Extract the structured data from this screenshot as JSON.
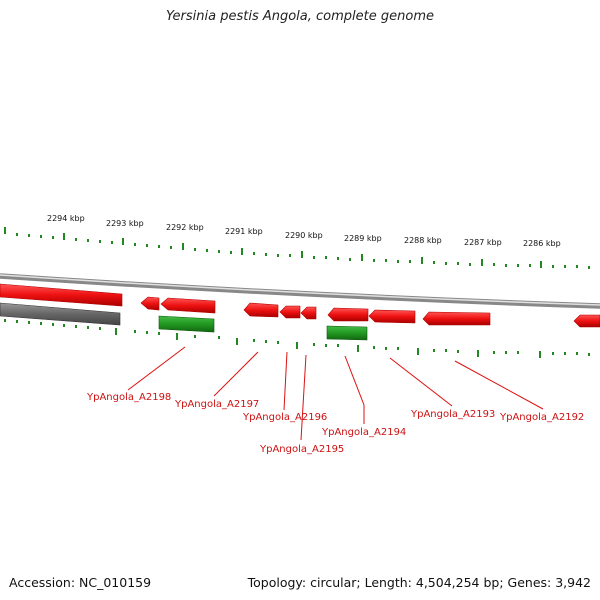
{
  "title": "Yersinia pestis Angola, complete genome",
  "footer": {
    "accession": "Accession: NC_010159",
    "summary": "Topology: circular; Length: 4,504,254 bp; Genes: 3,942"
  },
  "colors": {
    "forward_gene": "#ee1111",
    "reverse_gene": "#229922",
    "tick": "#228822",
    "label": "#cc1111",
    "backbone": "#999999"
  },
  "scale_labels": [
    "2294 kbp",
    "2293 kbp",
    "2292 kbp",
    "2291 kbp",
    "2290 kbp",
    "2289 kbp",
    "2288 kbp",
    "2287 kbp",
    "2286 kbp"
  ],
  "gene_labels": [
    "YpAngola_A2198",
    "YpAngola_A2197",
    "YpAngola_A2196",
    "YpAngola_A2195",
    "YpAngola_A2194",
    "YpAngola_A2193",
    "YpAngola_A2192"
  ]
}
